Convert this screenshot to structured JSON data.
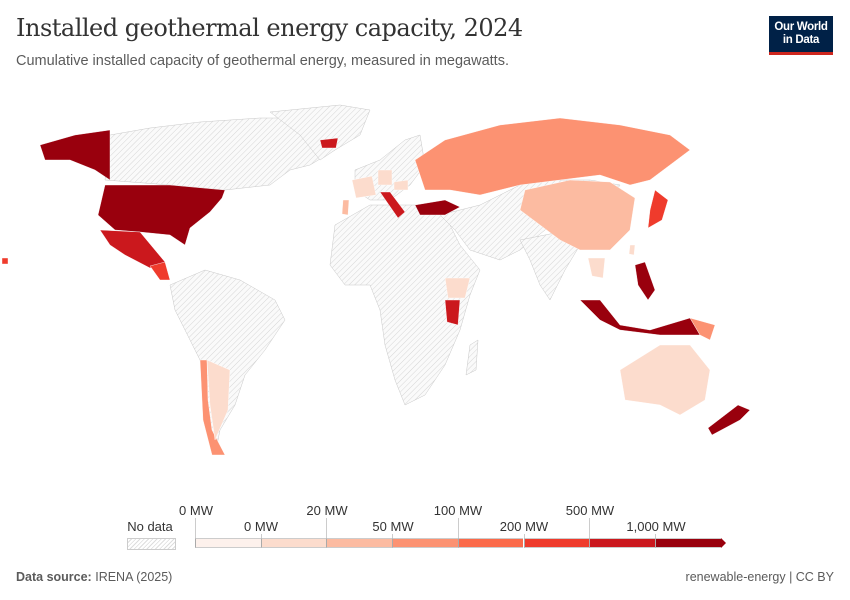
{
  "header": {
    "title": "Installed geothermal energy capacity, 2024",
    "subtitle": "Cumulative installed capacity of geothermal energy, measured in megawatts.",
    "logo_line1": "Our World",
    "logo_line2": "in Data"
  },
  "legend": {
    "no_data_label": "No data",
    "top_labels": [
      "0 MW",
      "20 MW",
      "100 MW",
      "500 MW"
    ],
    "bottom_labels": [
      "0 MW",
      "50 MW",
      "200 MW",
      "1,000 MW"
    ],
    "colors": [
      "#fdf1ec",
      "#fcdccd",
      "#fcbba1",
      "#fc9272",
      "#fb6a4a",
      "#ef3b2c",
      "#cb181d",
      "#99000d"
    ],
    "no_data_color": "#e8e8e8"
  },
  "chart_data": {
    "type": "choropleth",
    "title": "Installed geothermal energy capacity, 2024",
    "unit": "MW",
    "bins_mw": [
      0,
      0,
      20,
      50,
      100,
      200,
      500,
      1000
    ],
    "region_bin": {
      "usa": 7,
      "alaska": 7,
      "mexico": 6,
      "central_america": 5,
      "chile": 3,
      "argentina": 1,
      "iceland": 6,
      "italy": 6,
      "turkey": 7,
      "portugal": 2,
      "france": 1,
      "germany": 1,
      "hungary": 1,
      "croatia": 2,
      "russia": 3,
      "china": 2,
      "japan": 5,
      "taiwan": 1,
      "thailand": 1,
      "philippines": 7,
      "indonesia": 7,
      "papua_new_guinea": 3,
      "australia": 1,
      "new_zealand": 7,
      "kenya": 6,
      "ethiopia": 1,
      "guadeloupe": 5
    }
  },
  "footer": {
    "source_label": "Data source:",
    "source_value": "IRENA (2025)",
    "right": "renewable-energy | CC BY"
  }
}
